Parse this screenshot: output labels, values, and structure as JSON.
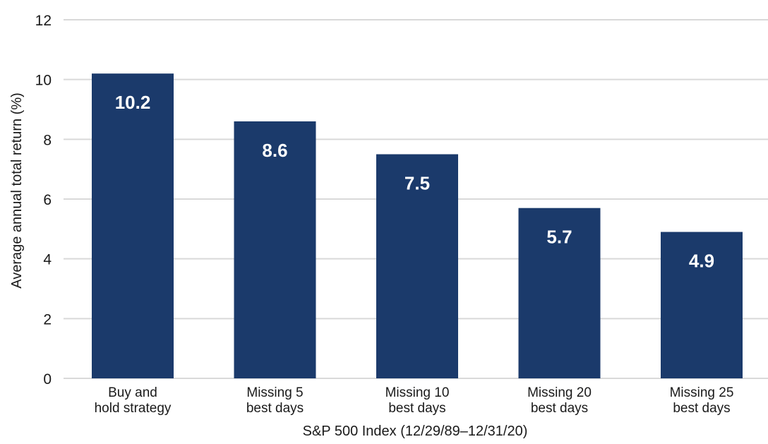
{
  "chart_data": {
    "type": "bar",
    "title": "",
    "xlabel": "S&P 500 Index (12/29/89–12/31/20)",
    "ylabel": "Average annual total return (%)",
    "ylim": [
      0,
      12
    ],
    "yticks": [
      0,
      2,
      4,
      6,
      8,
      10,
      12
    ],
    "grid": true,
    "categories": [
      [
        "Buy and",
        "hold strategy"
      ],
      [
        "Missing 5",
        "best days"
      ],
      [
        "Missing 10",
        "best days"
      ],
      [
        "Missing 20",
        "best days"
      ],
      [
        "Missing 25",
        "best days"
      ]
    ],
    "values": [
      10.2,
      8.6,
      7.5,
      5.7,
      4.9
    ],
    "data_labels": [
      "10.2",
      "8.6",
      "7.5",
      "5.7",
      "4.9"
    ],
    "colors": {
      "bar": "#1b3a6b",
      "grid": "#d9d9d9",
      "label": "#ffffff"
    }
  }
}
